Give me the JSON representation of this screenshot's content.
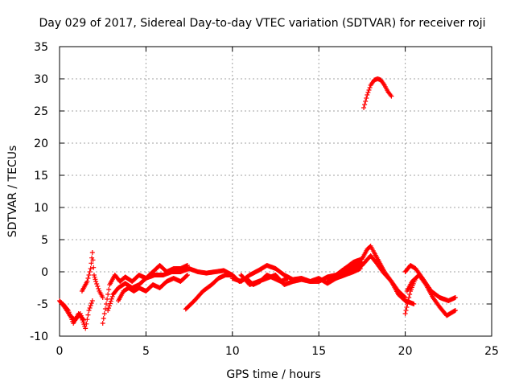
{
  "chart_data": {
    "type": "scatter",
    "title": "Day 029 of 2017, Sidereal Day-to-day VTEC variation (SDTVAR) for receiver roji",
    "xlabel": "GPS time / hours",
    "ylabel": "SDTVAR / TECUs",
    "xlim": [
      0,
      25
    ],
    "ylim": [
      -10,
      35
    ],
    "xticks": [
      0,
      5,
      10,
      15,
      20,
      25
    ],
    "yticks": [
      -10,
      -5,
      0,
      5,
      10,
      15,
      20,
      25,
      30,
      35
    ],
    "grid": true,
    "marker": "+",
    "series": [
      {
        "name": "SDTVAR",
        "color": "#ff0000",
        "tracks": [
          {
            "x": [
              0.0,
              0.3,
              0.6,
              0.9,
              1.2,
              1.5,
              1.7,
              1.9
            ],
            "y": [
              -4.5,
              -5.5,
              -6.8,
              -7.5,
              -6.5,
              -8.8,
              -6.0,
              -4.5
            ]
          },
          {
            "x": [
              0.2,
              0.5,
              0.8,
              1.1,
              1.4
            ],
            "y": [
              -5.0,
              -6.0,
              -8.0,
              -6.5,
              -7.5
            ]
          },
          {
            "x": [
              1.3,
              1.6,
              1.8,
              1.9,
              2.0,
              2.1,
              2.3,
              2.5
            ],
            "y": [
              -3.0,
              -1.5,
              0.5,
              3.0,
              -0.5,
              -1.5,
              -3.0,
              -4.0
            ]
          },
          {
            "x": [
              2.5,
              2.7,
              2.9,
              3.2,
              3.5,
              3.8,
              4.2,
              4.6,
              5.0,
              5.4,
              5.8,
              6.2,
              6.6,
              7.0,
              7.4
            ],
            "y": [
              -8.0,
              -5.0,
              -2.0,
              -0.5,
              -1.5,
              -0.8,
              -1.5,
              -0.5,
              -1.0,
              0.0,
              1.0,
              0.0,
              0.5,
              0.5,
              1.0
            ]
          },
          {
            "x": [
              2.8,
              3.1,
              3.4,
              3.8,
              4.2,
              4.6,
              5.0,
              5.5,
              6.0,
              6.5,
              7.0,
              7.5,
              8.0,
              8.5,
              9.0,
              9.5,
              10.0
            ],
            "y": [
              -6.0,
              -3.5,
              -2.5,
              -1.8,
              -2.5,
              -2.0,
              -1.0,
              -0.5,
              -0.5,
              0.0,
              0.0,
              0.5,
              0.0,
              -0.2,
              0.0,
              0.2,
              -0.5
            ]
          },
          {
            "x": [
              3.4,
              3.7,
              4.0,
              4.3,
              4.6,
              5.0,
              5.4,
              5.8,
              6.2,
              6.6,
              7.0,
              7.4
            ],
            "y": [
              -4.5,
              -3.0,
              -2.5,
              -3.0,
              -2.5,
              -3.0,
              -2.0,
              -2.5,
              -1.5,
              -1.0,
              -1.5,
              -0.5
            ]
          },
          {
            "x": [
              7.3,
              7.8,
              8.3,
              8.8,
              9.2,
              9.6,
              10.0,
              10.4,
              10.8,
              11.2,
              11.6,
              12.0,
              12.4,
              12.8,
              13.2
            ],
            "y": [
              -5.8,
              -4.5,
              -3.0,
              -2.0,
              -1.0,
              -0.5,
              -0.5,
              -1.5,
              -1.0,
              -2.0,
              -1.5,
              -0.5,
              -1.0,
              -1.5,
              -1.0
            ]
          },
          {
            "x": [
              10.0,
              10.5,
              11.0,
              11.5,
              12.0,
              12.5,
              13.0,
              13.5,
              14.0,
              14.5,
              15.0,
              15.5,
              16.0,
              16.5,
              17.0,
              17.5
            ],
            "y": [
              -1.0,
              -1.5,
              -0.5,
              0.2,
              1.0,
              0.5,
              -0.5,
              -1.2,
              -1.0,
              -1.5,
              -1.5,
              -0.8,
              -0.5,
              0.5,
              1.0,
              1.5
            ]
          },
          {
            "x": [
              10.5,
              11.0,
              11.5,
              12.0,
              12.5,
              13.0,
              13.5,
              14.0,
              14.5,
              15.0,
              15.5,
              16.0,
              16.5,
              17.0,
              17.4
            ],
            "y": [
              -0.5,
              -2.0,
              -1.5,
              -1.0,
              -0.5,
              -2.0,
              -1.5,
              -1.2,
              -1.5,
              -1.0,
              -1.8,
              -1.0,
              -0.5,
              0.0,
              0.5
            ]
          },
          {
            "x": [
              15.5,
              16.0,
              16.5,
              17.0,
              17.5,
              17.8,
              18.0,
              18.2,
              18.5,
              18.8,
              19.2,
              19.6,
              20.0,
              20.5
            ],
            "y": [
              -1.5,
              -0.5,
              0.5,
              1.5,
              2.0,
              3.5,
              4.0,
              3.0,
              1.5,
              0.0,
              -1.5,
              -3.5,
              -4.5,
              -5.0
            ]
          },
          {
            "x": [
              16.0,
              16.5,
              17.0,
              17.5,
              18.0,
              18.3,
              18.7,
              19.2,
              19.6,
              20.0
            ],
            "y": [
              -1.0,
              0.0,
              0.5,
              1.0,
              2.5,
              1.5,
              0.0,
              -1.5,
              -3.0,
              -4.0
            ]
          },
          {
            "x": [
              20.0,
              20.3,
              20.6,
              21.0,
              21.5,
              22.0,
              22.5,
              22.9
            ],
            "y": [
              0.0,
              1.0,
              0.5,
              -1.0,
              -3.0,
              -4.0,
              -4.5,
              -4.0
            ]
          },
          {
            "x": [
              20.1,
              20.4,
              20.8,
              21.2,
              21.6,
              22.0,
              22.4,
              22.9
            ],
            "y": [
              -3.0,
              -1.5,
              -0.5,
              -2.0,
              -4.0,
              -5.5,
              -6.8,
              -6.0
            ]
          },
          {
            "x": [
              20.0,
              20.3,
              20.6
            ],
            "y": [
              -6.5,
              -3.0,
              -1.0
            ]
          },
          {
            "x": [
              17.6,
              17.8,
              18.0,
              18.2,
              18.4,
              18.6,
              18.8,
              19.0,
              19.2
            ],
            "y": [
              25.5,
              27.5,
              29.0,
              29.8,
              30.0,
              29.8,
              29.0,
              28.0,
              27.3
            ]
          }
        ]
      }
    ]
  }
}
